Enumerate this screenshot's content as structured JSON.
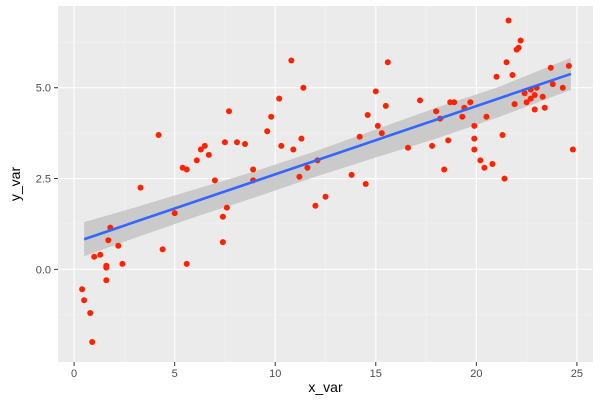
{
  "chart_data": {
    "type": "scatter",
    "title": "",
    "xlabel": "x_var",
    "ylabel": "y_var",
    "xlim": [
      -0.8,
      25.8
    ],
    "ylim": [
      -2.55,
      7.25
    ],
    "x_ticks": [
      0,
      5,
      10,
      15,
      20,
      25
    ],
    "x_tick_labels": [
      "0",
      "5",
      "10",
      "15",
      "20",
      "25"
    ],
    "y_ticks": [
      0,
      2.5,
      5
    ],
    "y_tick_labels": [
      "0.0",
      "2.5",
      "5.0"
    ],
    "grid": true,
    "legend": "none",
    "colors": {
      "panel_background": "#ebebeb",
      "grid_major": "#ffffff",
      "grid_minor": "#f3f3f3",
      "points": "#ff2200",
      "fit_line": "#3366ff",
      "confidence_band": "#c4c4c4"
    },
    "series": [
      {
        "kind": "points",
        "x": [
          0.4,
          0.5,
          0.8,
          0.9,
          1.0,
          1.3,
          1.6,
          1.6,
          1.6,
          1.7,
          1.8,
          2.2,
          2.4,
          3.3,
          4.2,
          4.4,
          5.0,
          5.4,
          5.6,
          5.6,
          6.1,
          6.3,
          6.5,
          6.7,
          7.0,
          7.4,
          7.4,
          7.5,
          7.6,
          7.7,
          8.1,
          8.5,
          8.9,
          8.9,
          9.6,
          9.8,
          10.2,
          10.3,
          10.8,
          10.9,
          11.2,
          11.3,
          11.4,
          11.6,
          12.0,
          12.1,
          12.5,
          13.8,
          14.2,
          14.6,
          14.5,
          15.0,
          15.1,
          15.3,
          15.5,
          15.6,
          16.6,
          17.2,
          17.8,
          18.0,
          18.2,
          18.4,
          18.6,
          18.7,
          18.9,
          19.3,
          19.4,
          19.7,
          19.9,
          19.9,
          19.9,
          20.2,
          20.4,
          20.5,
          20.8,
          21.0,
          21.3,
          21.4,
          21.5,
          21.6,
          21.8,
          21.9,
          22.0,
          22.1,
          22.2,
          22.4,
          22.5,
          22.7,
          22.7,
          22.9,
          22.9,
          23.0,
          23.3,
          23.4,
          23.7,
          23.8,
          24.3,
          24.6,
          24.8
        ],
        "y": [
          -0.55,
          -0.85,
          -1.2,
          -2.0,
          0.35,
          0.4,
          0.05,
          0.1,
          -0.3,
          0.8,
          1.15,
          0.65,
          0.15,
          2.25,
          3.7,
          0.55,
          1.55,
          2.8,
          2.75,
          0.15,
          3.0,
          3.3,
          3.4,
          3.15,
          2.45,
          1.45,
          0.75,
          3.5,
          1.7,
          4.35,
          3.5,
          3.45,
          2.75,
          2.45,
          3.8,
          4.2,
          4.7,
          3.4,
          5.75,
          3.3,
          2.55,
          3.6,
          5.0,
          2.8,
          1.75,
          3.0,
          2.0,
          2.6,
          3.65,
          4.25,
          2.35,
          4.9,
          3.95,
          3.75,
          4.5,
          5.7,
          3.35,
          4.65,
          3.4,
          4.35,
          4.15,
          2.75,
          3.55,
          4.6,
          4.6,
          4.2,
          4.45,
          4.6,
          3.95,
          3.3,
          3.6,
          3.0,
          2.8,
          4.2,
          2.9,
          5.3,
          3.7,
          2.5,
          5.7,
          6.85,
          5.35,
          4.55,
          6.05,
          6.1,
          6.3,
          4.85,
          4.6,
          4.95,
          4.7,
          4.4,
          4.8,
          5.0,
          4.75,
          4.45,
          5.55,
          5.1,
          5.0,
          5.6,
          3.3
        ]
      },
      {
        "kind": "fit_line",
        "x": [
          0.5,
          24.7
        ],
        "y": [
          0.83,
          5.38
        ]
      },
      {
        "kind": "confidence_band",
        "x": [
          0.5,
          3,
          6,
          9,
          12,
          15,
          18,
          21,
          24.7
        ],
        "upper": [
          1.3,
          1.7,
          2.2,
          2.7,
          3.25,
          3.85,
          4.45,
          5.0,
          5.82
        ],
        "lower": [
          0.36,
          0.86,
          1.44,
          1.98,
          2.55,
          3.08,
          3.6,
          4.17,
          4.94
        ]
      }
    ]
  }
}
